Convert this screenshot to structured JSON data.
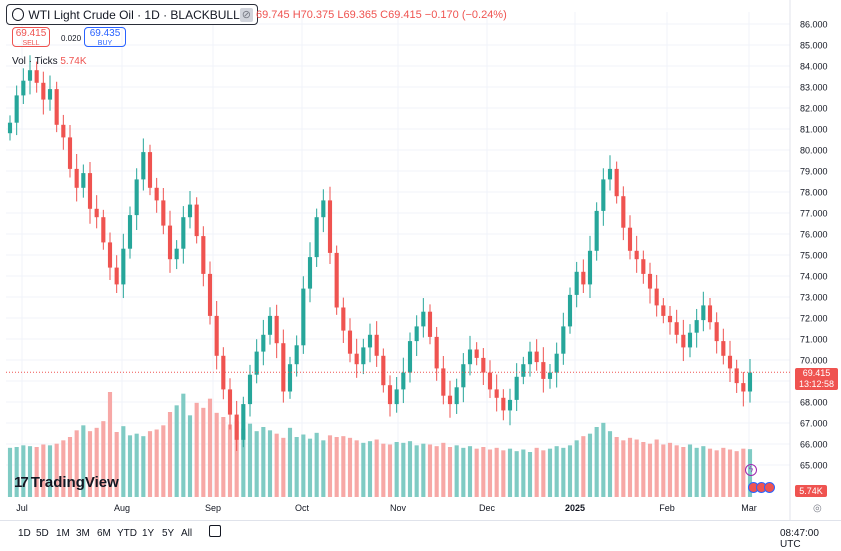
{
  "header": {
    "symbol_title": "WTI Light Crude Oil · 1D · BLACKBULL",
    "ohlc_text": "69.745 H70.375 L69.365 C69.415 −0.170 (−0.24%)",
    "sell_price": "69.415",
    "sell_label": "SELL",
    "spread": "0.020",
    "buy_price": "69.435",
    "buy_label": "BUY",
    "vol_label": "Vol · Ticks",
    "vol_value": "5.74K"
  },
  "branding": {
    "logo_text": "TradingView"
  },
  "price_tag": {
    "price": "69.415",
    "countdown": "13:12:58"
  },
  "volume_tag": "5.74K",
  "bottom_bar": {
    "ranges": [
      "1D",
      "5D",
      "1M",
      "3M",
      "6M",
      "YTD",
      "1Y",
      "5Y",
      "All"
    ],
    "time": "08:47:00 UTC"
  },
  "colors": {
    "up": "#26a69a",
    "down": "#ef5350",
    "vol_up": "#80cbc4",
    "vol_down": "#f7a8a6",
    "grid": "#f0f3fa"
  },
  "chart_data": {
    "type": "candlestick",
    "x_tick_labels": [
      "Jul",
      "Aug",
      "Sep",
      "Oct",
      "Nov",
      "Dec",
      "2025",
      "Feb",
      "Mar"
    ],
    "y_tick_labels": [
      "86.000",
      "85.000",
      "84.000",
      "83.000",
      "82.000",
      "81.000",
      "80.000",
      "79.000",
      "78.000",
      "77.000",
      "76.000",
      "75.000",
      "74.000",
      "73.000",
      "72.000",
      "71.000",
      "70.000",
      "69.000",
      "68.000",
      "67.000",
      "66.000",
      "65.000"
    ],
    "ylim": [
      64.6,
      86.3
    ],
    "last_price": 69.415,
    "close": [
      81.3,
      82.6,
      83.3,
      83.8,
      83.2,
      82.4,
      82.9,
      81.2,
      80.6,
      79.1,
      78.2,
      78.9,
      77.2,
      76.8,
      75.6,
      74.4,
      73.6,
      75.3,
      76.9,
      78.6,
      79.9,
      78.2,
      77.6,
      76.4,
      74.8,
      75.3,
      76.8,
      77.4,
      75.9,
      74.1,
      72.1,
      70.2,
      68.6,
      67.4,
      66.2,
      67.9,
      69.3,
      70.4,
      71.2,
      72.1,
      70.8,
      68.5,
      69.8,
      70.7,
      73.4,
      74.9,
      76.8,
      77.6,
      75.1,
      72.5,
      71.4,
      70.3,
      69.8,
      70.6,
      71.2,
      70.2,
      68.8,
      67.9,
      68.6,
      69.4,
      70.9,
      71.6,
      72.3,
      71.1,
      69.6,
      68.3,
      67.9,
      68.7,
      69.8,
      70.5,
      70.1,
      69.4,
      68.6,
      68.2,
      67.6,
      68.1,
      69.2,
      69.8,
      70.4,
      69.9,
      69.1,
      69.4,
      70.3,
      71.6,
      73.1,
      74.2,
      73.6,
      75.2,
      77.1,
      78.6,
      79.1,
      77.8,
      76.3,
      75.2,
      74.8,
      74.1,
      73.4,
      72.6,
      72.1,
      71.8,
      71.2,
      70.6,
      71.3,
      71.9,
      72.6,
      71.8,
      70.9,
      70.2,
      69.6,
      68.9,
      68.5,
      69.4
    ],
    "volume_ticks_k": [
      5.9,
      6.0,
      6.2,
      6.1,
      6.0,
      6.3,
      6.2,
      6.4,
      6.8,
      7.2,
      8.0,
      8.6,
      7.9,
      8.3,
      9.1,
      12.6,
      7.8,
      8.5,
      7.4,
      7.6,
      7.3,
      7.9,
      8.1,
      8.6,
      10.2,
      11.0,
      12.4,
      9.8,
      11.3,
      10.7,
      11.8,
      10.1,
      9.6,
      8.7,
      9.1,
      8.2,
      8.8,
      7.9,
      8.4,
      8.0,
      7.6,
      7.1,
      8.3,
      7.2,
      7.5,
      7.0,
      7.7,
      6.8,
      7.4,
      7.2,
      7.3,
      7.1,
      6.8,
      6.5,
      6.7,
      6.9,
      6.4,
      6.3,
      6.6,
      6.5,
      6.7,
      6.2,
      6.4,
      6.3,
      6.1,
      6.5,
      6.0,
      6.2,
      5.9,
      6.1,
      5.8,
      6.0,
      5.7,
      5.9,
      5.6,
      5.8,
      5.5,
      5.7,
      5.4,
      5.9,
      5.6,
      5.8,
      6.1,
      5.9,
      6.2,
      6.8,
      7.3,
      7.6,
      8.4,
      8.9,
      7.9,
      7.2,
      6.8,
      7.1,
      6.9,
      6.6,
      6.4,
      6.9,
      6.3,
      6.5,
      6.2,
      6.0,
      6.3,
      5.9,
      6.1,
      5.8,
      5.6,
      5.9,
      5.7,
      5.5,
      5.8,
      5.74
    ]
  }
}
